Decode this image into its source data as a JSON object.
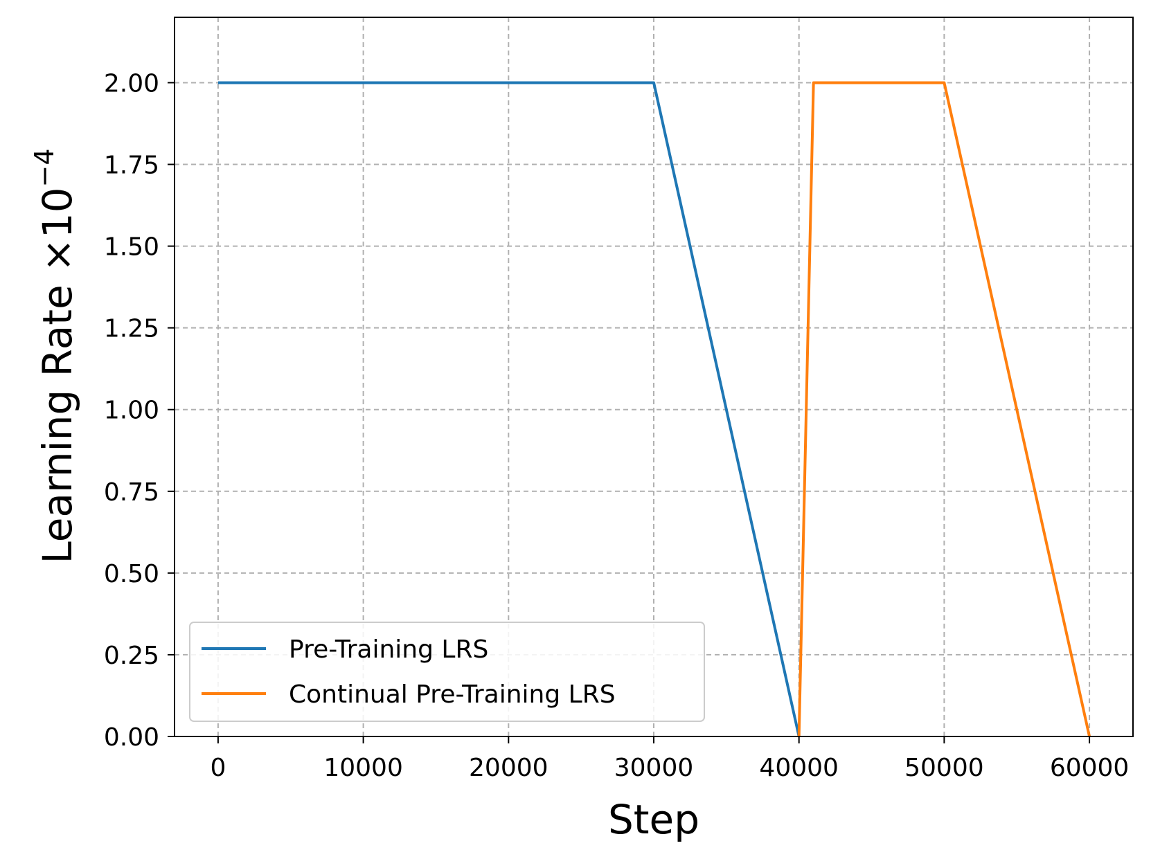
{
  "chart_data": {
    "type": "line",
    "title": "",
    "xlabel": "Step",
    "ylabel_text": "Learning Rate ×10",
    "ylabel_exponent": "−4",
    "xlim": [
      -3000,
      63000
    ],
    "ylim": [
      0,
      2.2
    ],
    "xticks": [
      0,
      10000,
      20000,
      30000,
      40000,
      50000,
      60000
    ],
    "xtick_labels": [
      "0",
      "10000",
      "20000",
      "30000",
      "40000",
      "50000",
      "60000"
    ],
    "yticks": [
      0,
      0.25,
      0.5,
      0.75,
      1.0,
      1.25,
      1.5,
      1.75,
      2.0
    ],
    "ytick_labels": [
      "0.00",
      "0.25",
      "0.50",
      "0.75",
      "1.00",
      "1.25",
      "1.50",
      "1.75",
      "2.00"
    ],
    "grid": true,
    "legend_position": "lower-left",
    "series": [
      {
        "name": "Pre-Training LRS",
        "color": "#1f77b4",
        "x": [
          0,
          30000,
          40000
        ],
        "y": [
          2.0,
          2.0,
          0.0
        ]
      },
      {
        "name": "Continual Pre-Training LRS",
        "color": "#ff7f0e",
        "x": [
          40000,
          41000,
          50000,
          60000
        ],
        "y": [
          0.0,
          2.0,
          2.0,
          0.0
        ]
      }
    ]
  }
}
